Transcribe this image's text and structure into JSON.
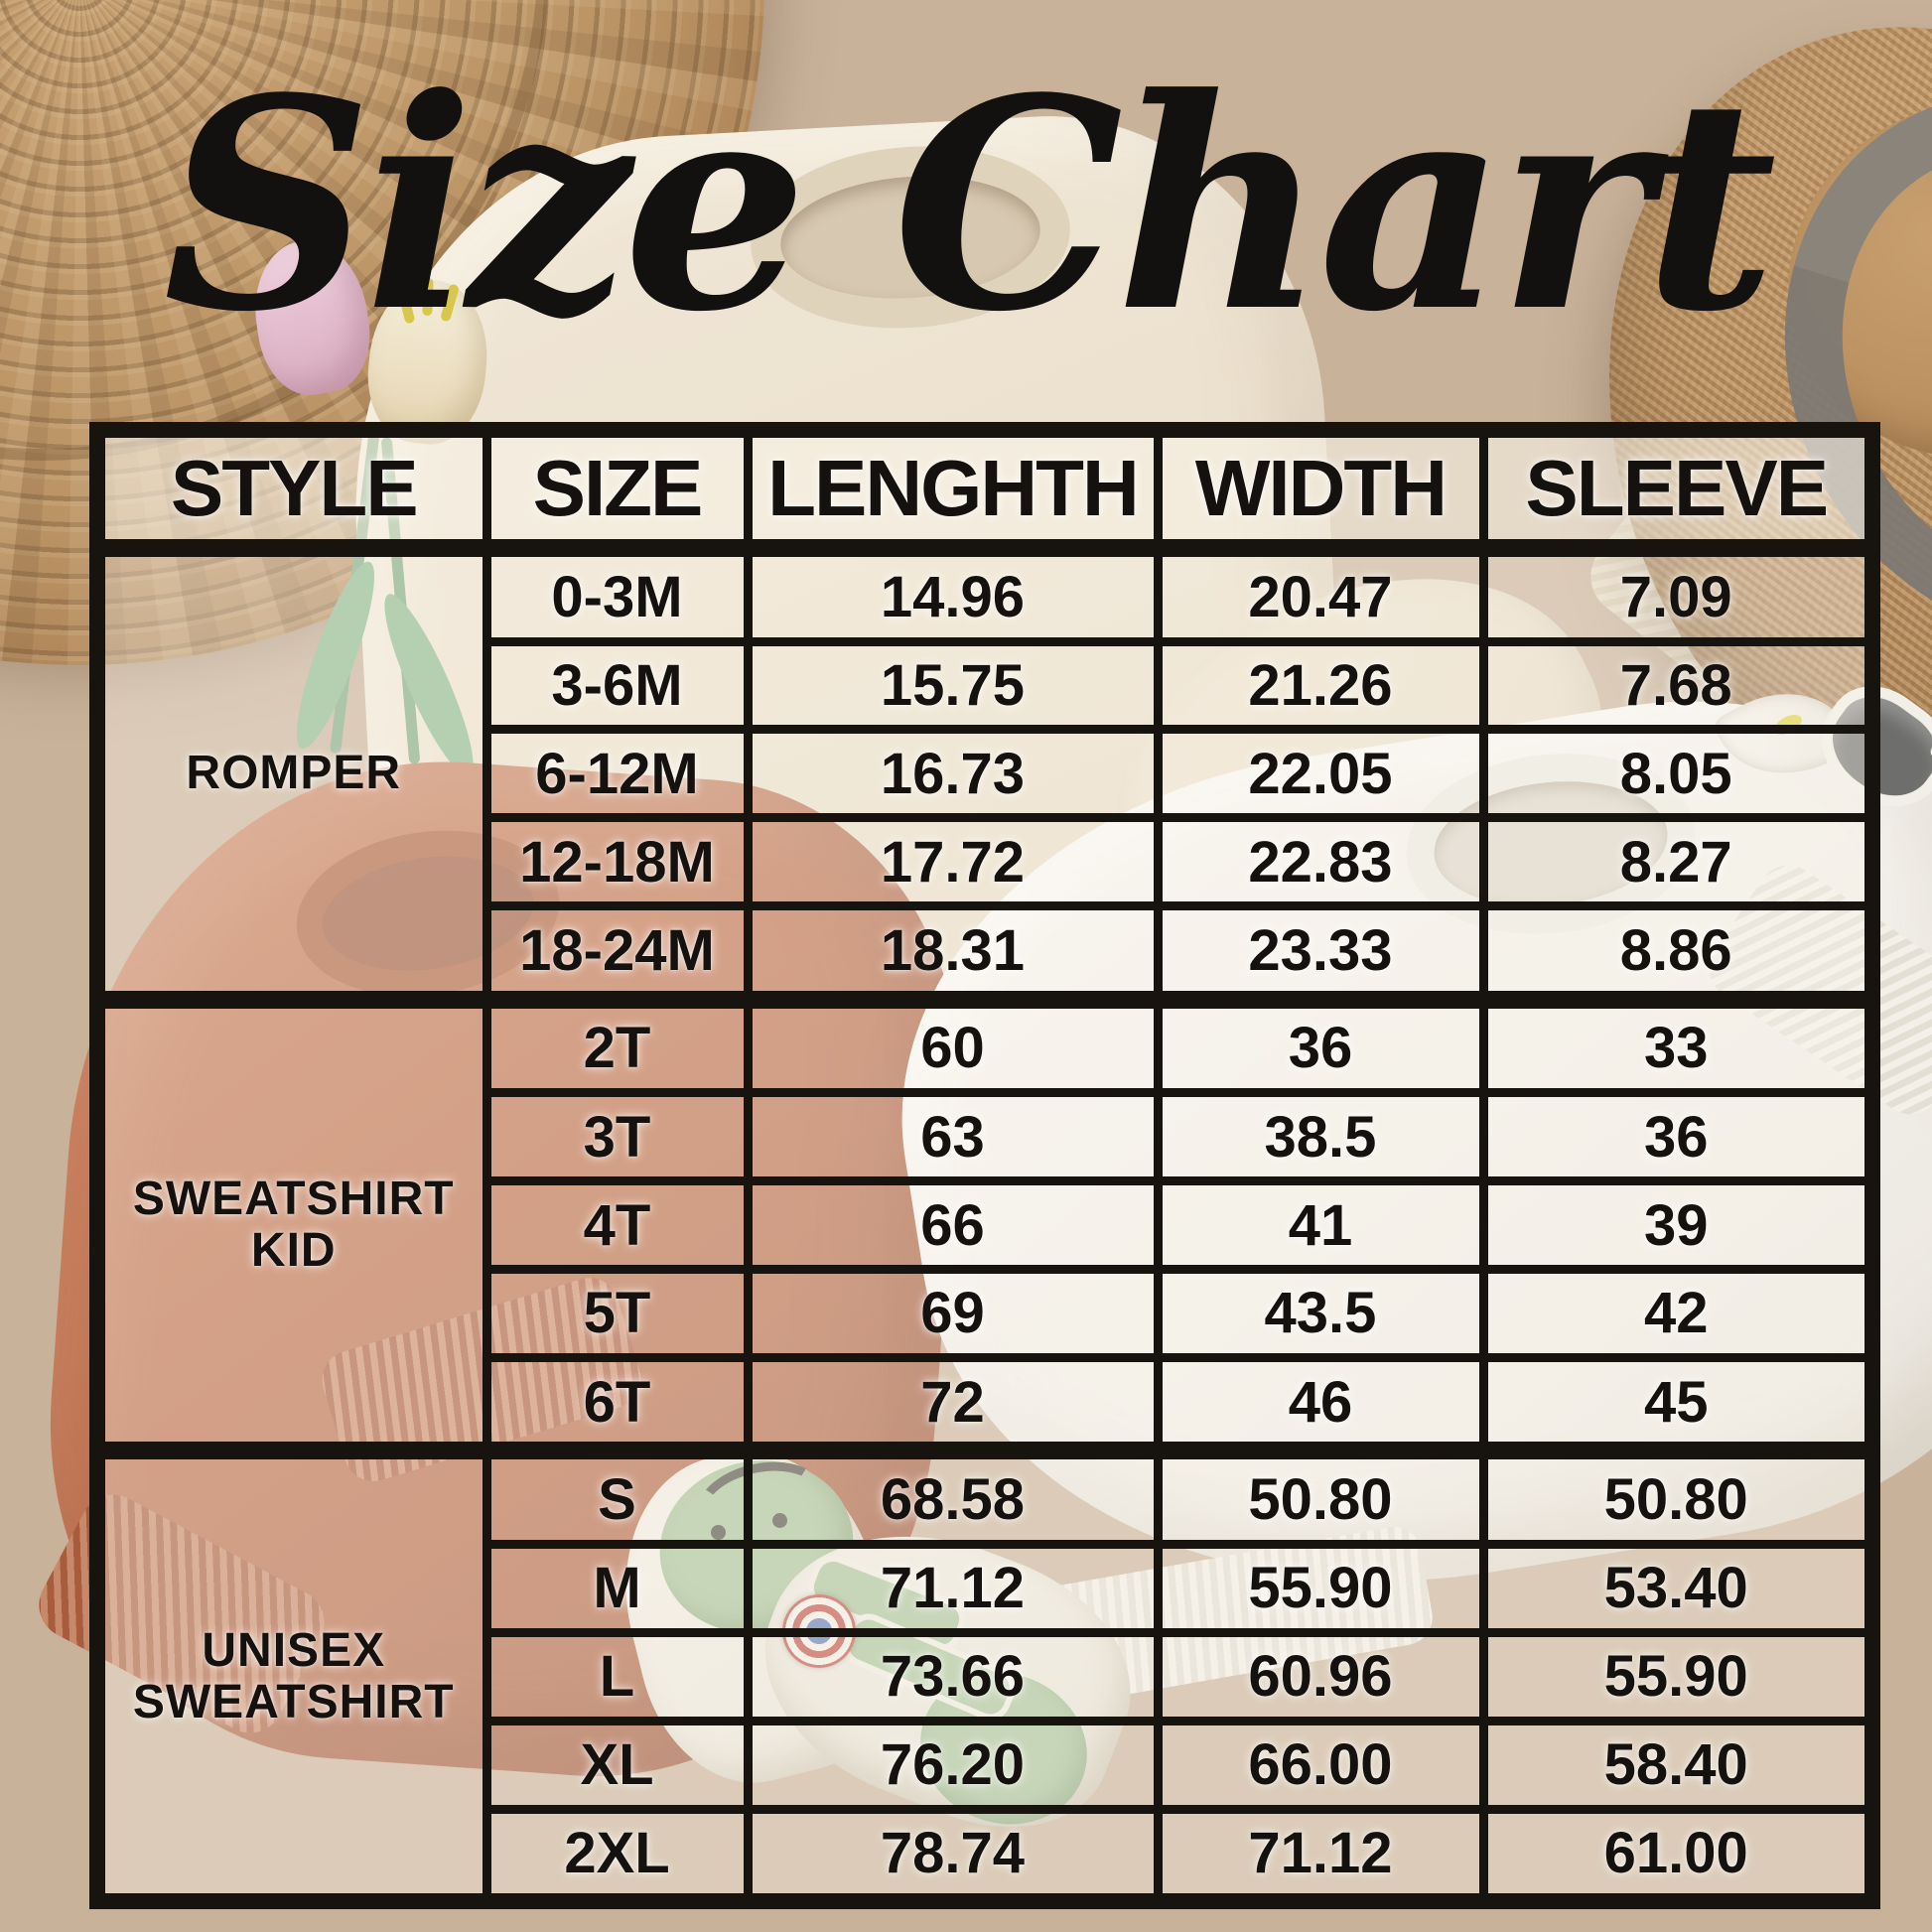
{
  "title": "Size Chart",
  "chart_data": {
    "type": "table",
    "title": "Size Chart",
    "columns": [
      "STYLE",
      "SIZE",
      "LENGHTH",
      "WIDTH",
      "SLEEVE"
    ],
    "sections": [
      {
        "style": "ROMPER",
        "rows": [
          [
            "0-3M",
            "14.96",
            "20.47",
            "7.09"
          ],
          [
            "3-6M",
            "15.75",
            "21.26",
            "7.68"
          ],
          [
            "6-12M",
            "16.73",
            "22.05",
            "8.05"
          ],
          [
            "12-18M",
            "17.72",
            "22.83",
            "8.27"
          ],
          [
            "18-24M",
            "18.31",
            "23.33",
            "8.86"
          ]
        ]
      },
      {
        "style": "SWEATSHIRT KID",
        "rows": [
          [
            "2T",
            "60",
            "36",
            "33"
          ],
          [
            "3T",
            "63",
            "38.5",
            "36"
          ],
          [
            "4T",
            "66",
            "41",
            "39"
          ],
          [
            "5T",
            "69",
            "43.5",
            "42"
          ],
          [
            "6T",
            "72",
            "46",
            "45"
          ]
        ]
      },
      {
        "style": "UNISEX SWEATSHIRT",
        "rows": [
          [
            "S",
            "68.58",
            "50.80",
            "50.80"
          ],
          [
            "M",
            "71.12",
            "55.90",
            "53.40"
          ],
          [
            "L",
            "73.66",
            "60.96",
            "55.90"
          ],
          [
            "XL",
            "76.20",
            "66.00",
            "58.40"
          ],
          [
            "2XL",
            "78.74",
            "71.12",
            "61.00"
          ]
        ]
      }
    ],
    "layout": {
      "grid_lines": "black",
      "legend": "none"
    }
  },
  "colors": {
    "table_line": "#17140f",
    "table_text": "#14110e",
    "cell_wash": "rgba(249,244,234,0.38)",
    "burlap": "#c9b29a",
    "straw_hat": "#bb9466",
    "fedora_hat": "#b98f60",
    "cream_sweatshirt": "#ece1cd",
    "rust_sweatshirt": "#ba6c4a",
    "white_sweatshirt": "#f4f2ed",
    "sneaker_green": "#a8c29a"
  },
  "photo_elements": [
    "woven-straw-hat",
    "pink-tulip",
    "white-tulip",
    "cream-baby-sweatshirt",
    "tan-fedora-hat",
    "sunglasses",
    "calla-lily-flower",
    "rust-kids-sweatshirt",
    "white-kids-sweatshirt",
    "baby-sneakers",
    "burlap-backdrop"
  ]
}
